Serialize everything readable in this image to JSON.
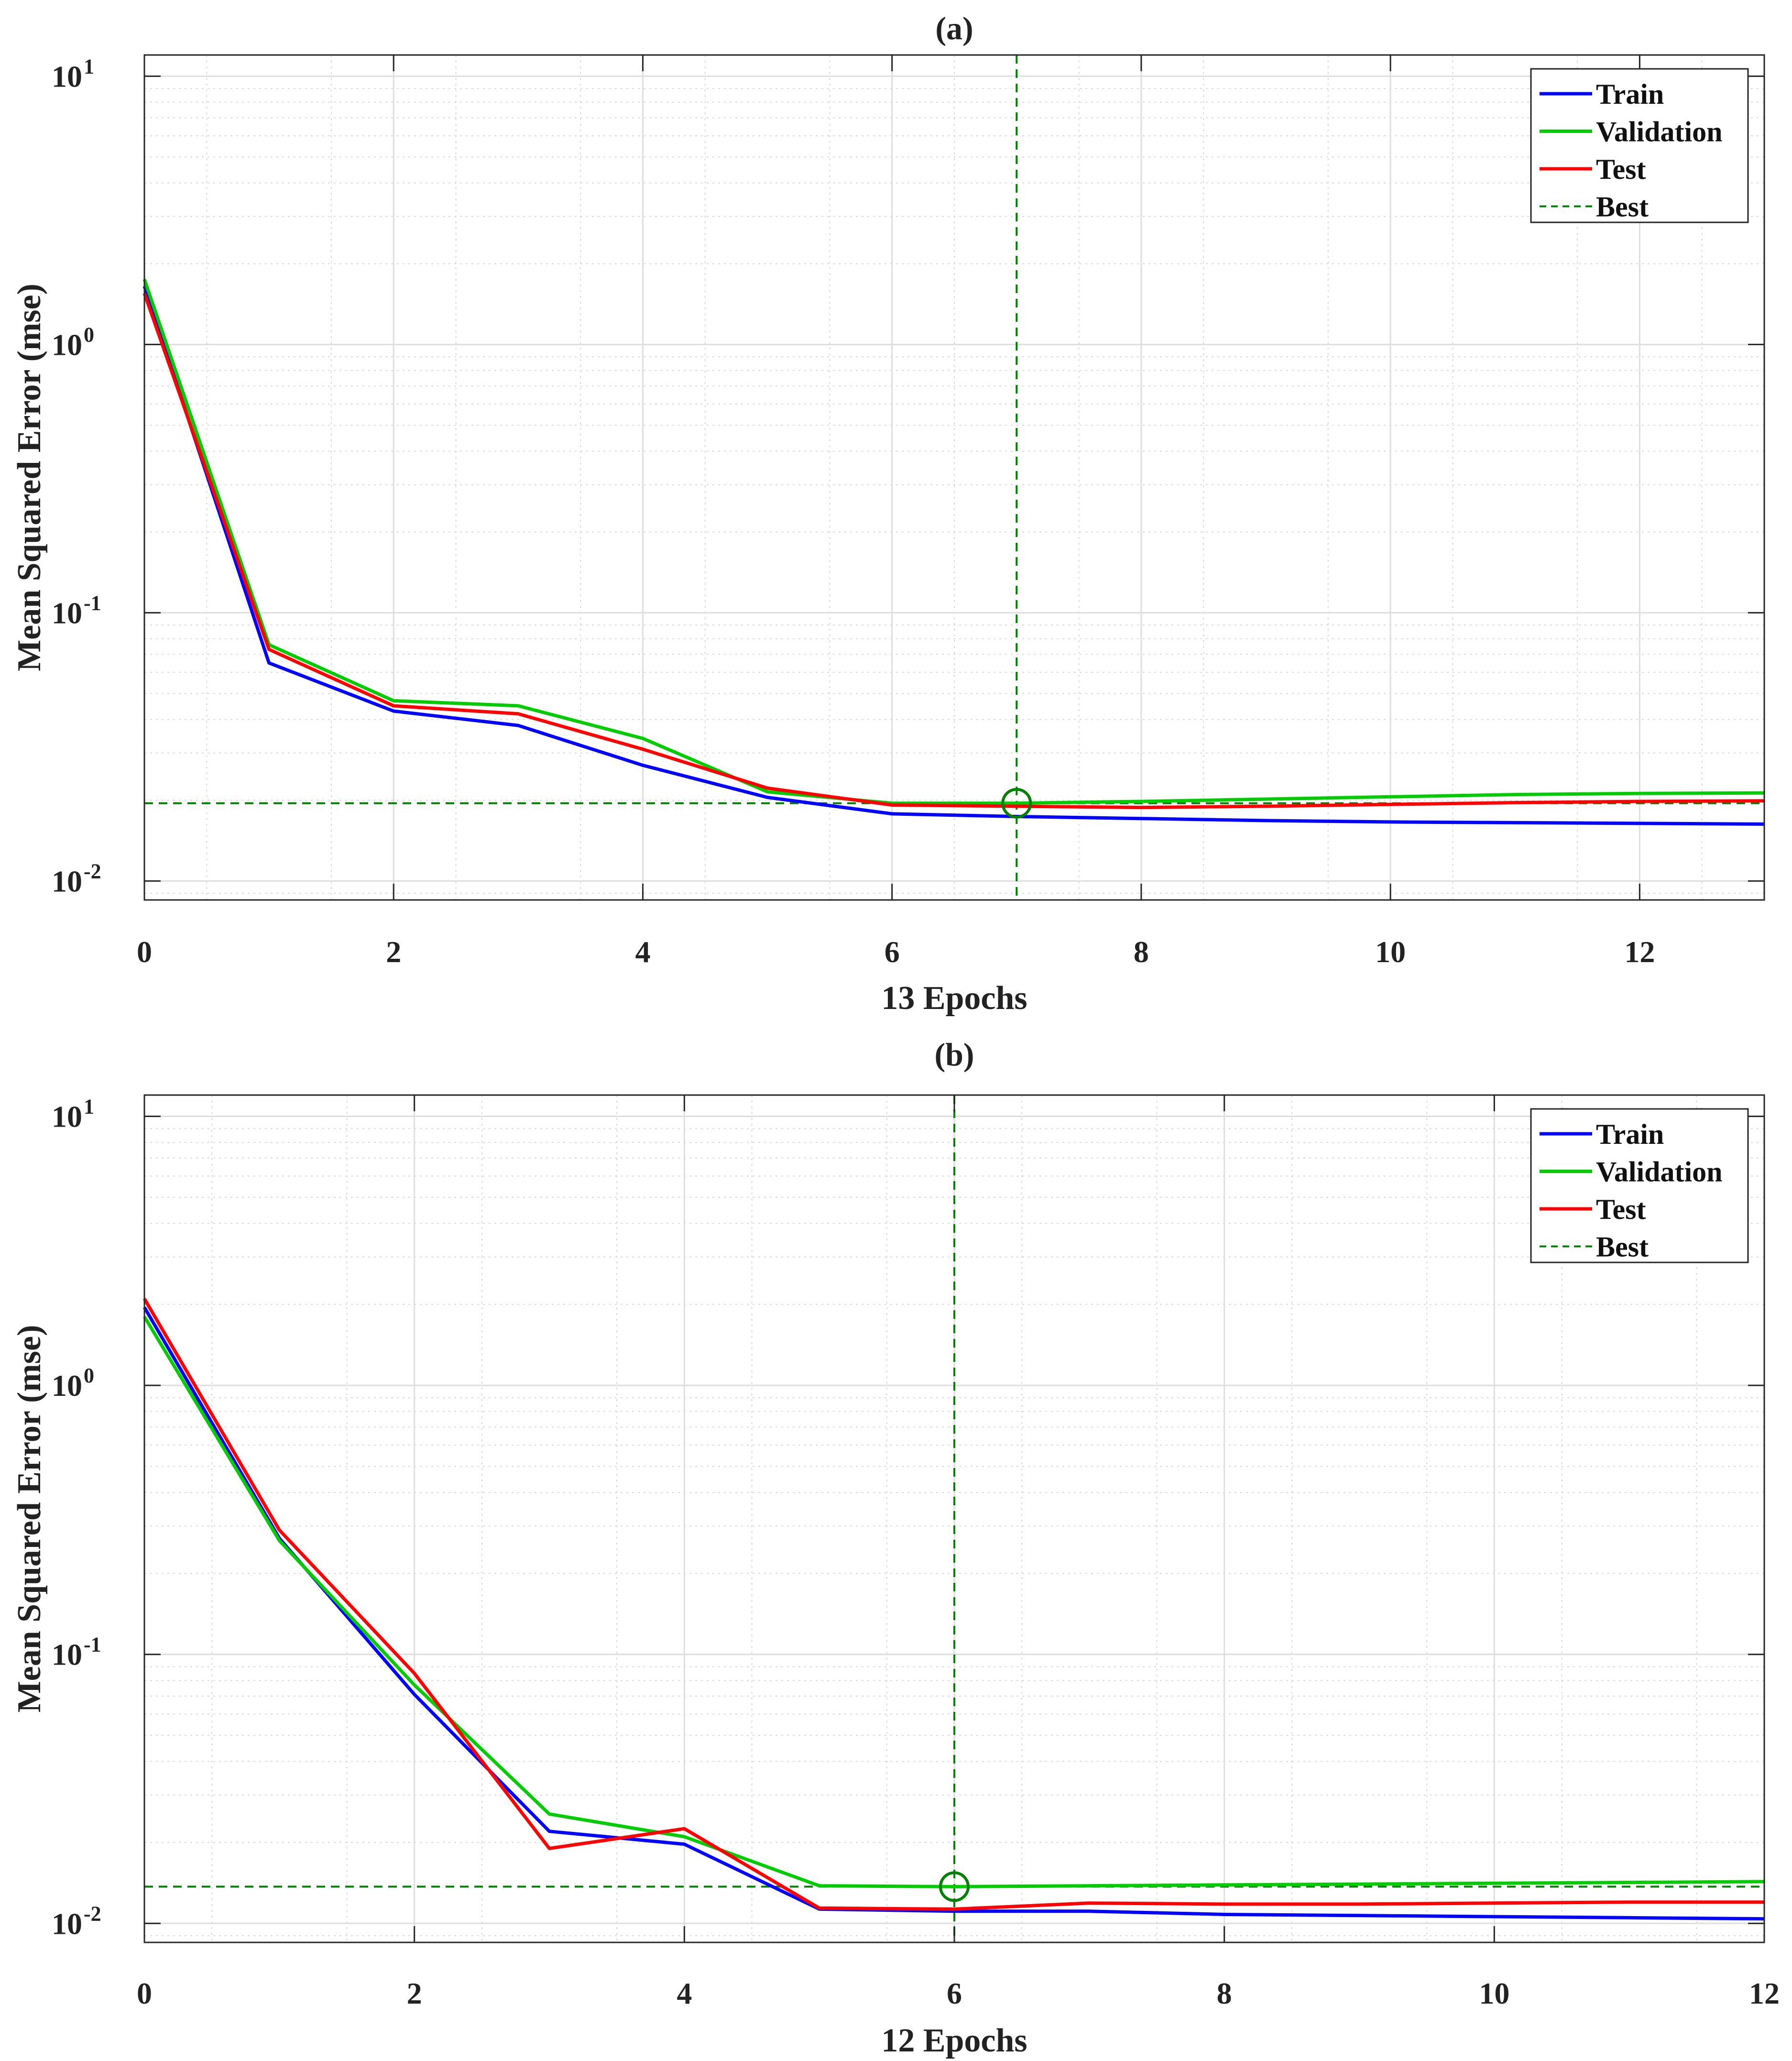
{
  "chart_data": [
    {
      "type": "line",
      "title": "(a)",
      "xlabel": "13 Epochs",
      "ylabel": "Mean Squared Error  (mse)",
      "yscale": "log",
      "xlim": [
        0,
        13
      ],
      "ylim": [
        0.0085,
        12
      ],
      "xticks": [
        0,
        2,
        4,
        6,
        8,
        10,
        12
      ],
      "xtick_labels": [
        "0",
        "2",
        "4",
        "6",
        "8",
        "10",
        "12"
      ],
      "yticks": [
        {
          "value": 10,
          "base": "10",
          "exp": "1"
        },
        {
          "value": 1,
          "base": "10",
          "exp": "0"
        },
        {
          "value": 0.1,
          "base": "10",
          "exp": "-1"
        },
        {
          "value": 0.01,
          "base": "10",
          "exp": "-2"
        }
      ],
      "grid": true,
      "legend_position": "top-right",
      "series": [
        {
          "name": "Train",
          "color": "#0000ff",
          "x": [
            0,
            1,
            2,
            3,
            4,
            5,
            6,
            7,
            8,
            9,
            10,
            11,
            12,
            13
          ],
          "y": [
            1.65,
            0.065,
            0.043,
            0.038,
            0.027,
            0.0205,
            0.0178,
            0.0174,
            0.0171,
            0.0168,
            0.0166,
            0.0165,
            0.0164,
            0.0163
          ]
        },
        {
          "name": "Validation",
          "color": "#00cc00",
          "x": [
            0,
            1,
            2,
            3,
            4,
            5,
            6,
            7,
            8,
            9,
            10,
            11,
            12,
            13
          ],
          "y": [
            1.75,
            0.076,
            0.047,
            0.045,
            0.034,
            0.0215,
            0.0195,
            0.0195,
            0.0198,
            0.0202,
            0.0206,
            0.021,
            0.0212,
            0.0213
          ]
        },
        {
          "name": "Test",
          "color": "#ff0000",
          "x": [
            0,
            1,
            2,
            3,
            4,
            5,
            6,
            7,
            8,
            9,
            10,
            11,
            12,
            13
          ],
          "y": [
            1.55,
            0.073,
            0.045,
            0.042,
            0.031,
            0.0222,
            0.0192,
            0.019,
            0.0188,
            0.019,
            0.0193,
            0.0196,
            0.0198,
            0.0199
          ]
        }
      ],
      "best": {
        "name": "Best",
        "color": "#008000",
        "epoch": 7,
        "value": 0.0195
      }
    },
    {
      "type": "line",
      "title": "(b)",
      "xlabel": "12 Epochs",
      "ylabel": "Mean Squared Error  (mse)",
      "yscale": "log",
      "xlim": [
        0,
        12
      ],
      "ylim": [
        0.0085,
        12
      ],
      "xticks": [
        0,
        2,
        4,
        6,
        8,
        10,
        12
      ],
      "xtick_labels": [
        "0",
        "2",
        "4",
        "6",
        "8",
        "10",
        "12"
      ],
      "yticks": [
        {
          "value": 10,
          "base": "10",
          "exp": "1"
        },
        {
          "value": 1,
          "base": "10",
          "exp": "0"
        },
        {
          "value": 0.1,
          "base": "10",
          "exp": "-1"
        },
        {
          "value": 0.01,
          "base": "10",
          "exp": "-2"
        }
      ],
      "grid": true,
      "legend_position": "top-right",
      "series": [
        {
          "name": "Train",
          "color": "#0000ff",
          "x": [
            0,
            1,
            2,
            3,
            4,
            5,
            6,
            7,
            8,
            9,
            10,
            11,
            12
          ],
          "y": [
            1.95,
            0.27,
            0.071,
            0.022,
            0.0197,
            0.0113,
            0.0111,
            0.0111,
            0.0108,
            0.0107,
            0.0106,
            0.0105,
            0.0104
          ]
        },
        {
          "name": "Validation",
          "color": "#00cc00",
          "x": [
            0,
            1,
            2,
            3,
            4,
            5,
            6,
            7,
            8,
            9,
            10,
            11,
            12
          ],
          "y": [
            1.8,
            0.265,
            0.077,
            0.0255,
            0.021,
            0.0138,
            0.0137,
            0.0138,
            0.0139,
            0.014,
            0.0141,
            0.0142,
            0.0143
          ]
        },
        {
          "name": "Test",
          "color": "#ff0000",
          "x": [
            0,
            1,
            2,
            3,
            4,
            5,
            6,
            7,
            8,
            9,
            10,
            11,
            12
          ],
          "y": [
            2.1,
            0.29,
            0.085,
            0.019,
            0.0225,
            0.0114,
            0.0113,
            0.0119,
            0.0118,
            0.0118,
            0.0119,
            0.012,
            0.012
          ]
        }
      ],
      "best": {
        "name": "Best",
        "color": "#008000",
        "epoch": 6,
        "value": 0.0137
      }
    }
  ]
}
